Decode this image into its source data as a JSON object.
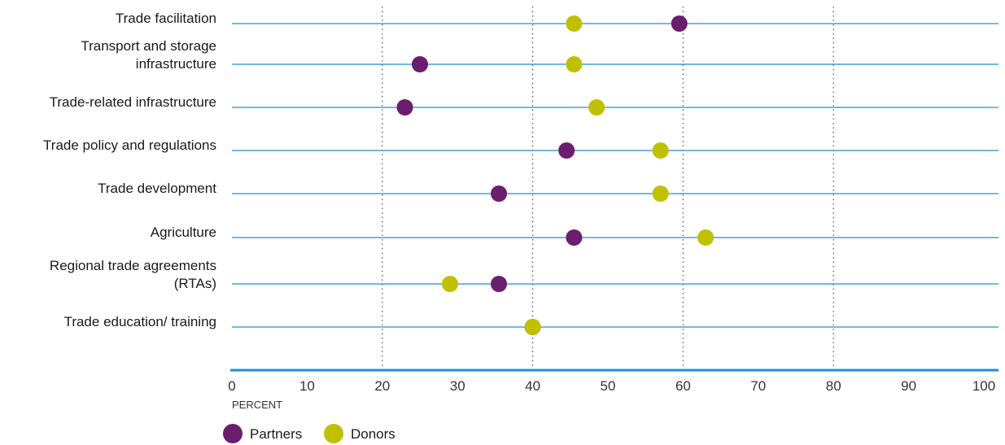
{
  "chart_data": {
    "type": "scatter",
    "categories": [
      "Trade facilitation",
      "Transport and storage infrastructure",
      "Trade-related infrastructure",
      "Trade policy and regulations",
      "Trade development",
      "Agriculture",
      "Regional trade agreements (RTAs)",
      "Trade education/ training"
    ],
    "category_lines": [
      [
        "Trade facilitation"
      ],
      [
        "Transport and storage",
        "infrastructure"
      ],
      [
        "Trade-related infrastructure"
      ],
      [
        "Trade policy and regulations"
      ],
      [
        "Trade development"
      ],
      [
        "Agriculture"
      ],
      [
        "Regional trade agreements",
        "(RTAs)"
      ],
      [
        "Trade education/ training"
      ]
    ],
    "series": [
      {
        "name": "Partners",
        "color": "#6b1d6e",
        "values": [
          59.5,
          25,
          23,
          44.5,
          35.5,
          45.5,
          35.5,
          40
        ]
      },
      {
        "name": "Donors",
        "color": "#bfc100",
        "values": [
          45.5,
          45.5,
          48.5,
          57,
          57,
          63,
          29,
          40
        ]
      }
    ],
    "xticks": [
      0,
      10,
      20,
      30,
      40,
      50,
      60,
      70,
      80,
      90,
      100
    ],
    "xlim": [
      0,
      100
    ],
    "xlabel": "PERCENT",
    "dotted_gridlines_at": [
      20,
      40,
      60,
      80
    ],
    "row_line_color": "#1a8fd6",
    "legend": "bottom-left"
  }
}
